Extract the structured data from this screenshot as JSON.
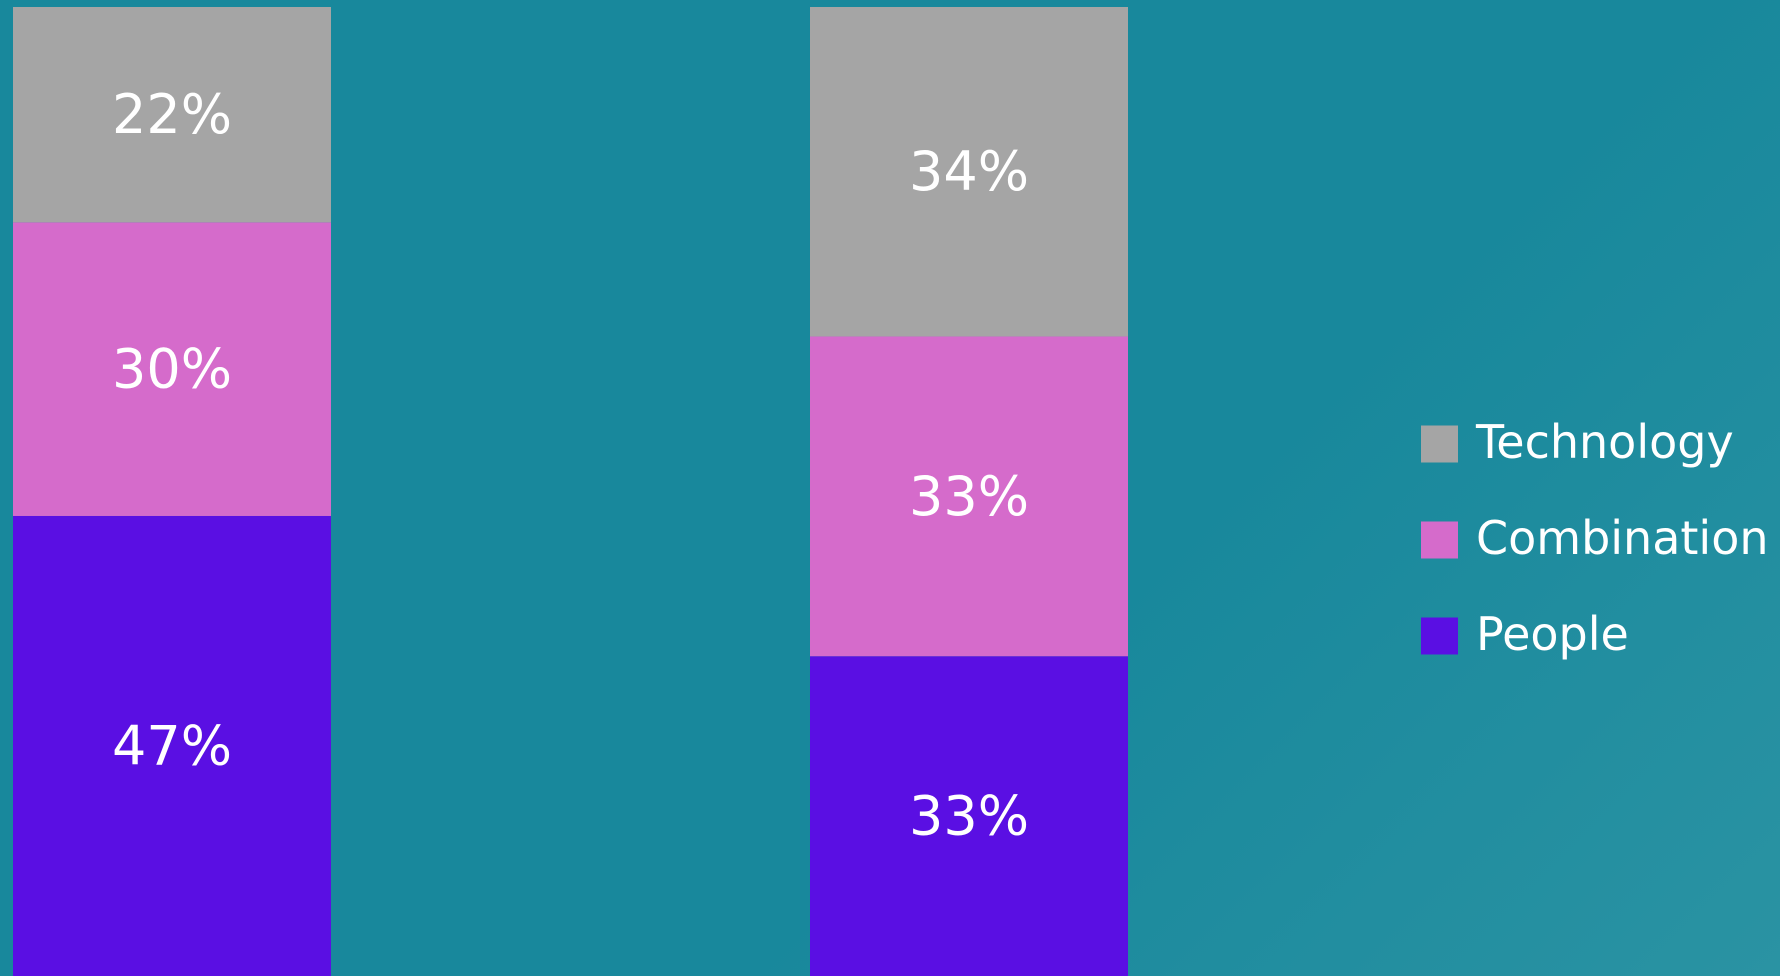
{
  "chart_data": {
    "type": "bar",
    "stacked": true,
    "categories": [
      "",
      ""
    ],
    "series": [
      {
        "name": "People",
        "values": [
          47,
          33
        ],
        "labels": [
          "47%",
          "33%"
        ],
        "color": "#5a0fe3"
      },
      {
        "name": "Combination",
        "values": [
          30,
          33
        ],
        "labels": [
          "30%",
          "33%"
        ],
        "color": "#d56bcb"
      },
      {
        "name": "Technology",
        "values": [
          22,
          34
        ],
        "labels": [
          "22%",
          "34%"
        ],
        "color": "#a5a5a5"
      }
    ],
    "legend_order": [
      "Technology",
      "Combination",
      "People"
    ],
    "legend_position": "right",
    "ylim": [
      0,
      100
    ],
    "grid": false,
    "axes_visible": false
  },
  "colors": {
    "background": "#18889c",
    "label_text": "#ffffff"
  }
}
